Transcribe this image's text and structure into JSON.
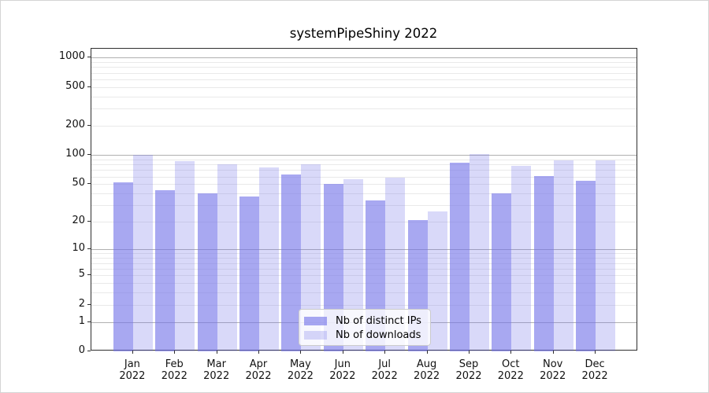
{
  "chart_data": {
    "type": "bar",
    "title": "systemPipeShiny 2022",
    "categories": [
      "Jan 2022",
      "Feb 2022",
      "Mar 2022",
      "Apr 2022",
      "May 2022",
      "Jun 2022",
      "Jul 2022",
      "Aug 2022",
      "Sep 2022",
      "Oct 2022",
      "Nov 2022",
      "Dec 2022"
    ],
    "months": [
      "Jan",
      "Feb",
      "Mar",
      "Apr",
      "May",
      "Jun",
      "Jul",
      "Aug",
      "Sep",
      "Oct",
      "Nov",
      "Dec"
    ],
    "year": "2022",
    "series": [
      {
        "name": "Nb of distinct IPs",
        "color": "rgba(115,115,232,0.62)",
        "values": [
          52,
          43,
          40,
          37,
          63,
          50,
          34,
          21,
          83,
          40,
          61,
          54
        ]
      },
      {
        "name": "Nb of downloads",
        "color": "rgba(115,115,232,0.27)",
        "values": [
          100,
          86,
          80,
          74,
          80,
          56,
          58,
          26,
          102,
          78,
          88,
          88
        ]
      }
    ],
    "yscale": "log1p",
    "ylim": [
      0,
      1000
    ],
    "xlabel": "",
    "ylabel": "",
    "grid": true,
    "y_tick_labels": [
      0,
      1,
      2,
      5,
      10,
      20,
      50,
      100,
      200,
      500,
      1000
    ],
    "y_major_gridlines": [
      1,
      10,
      100,
      1000
    ],
    "y_minor_gridlines": [
      2,
      3,
      4,
      5,
      6,
      7,
      8,
      9,
      20,
      30,
      40,
      50,
      60,
      70,
      80,
      90,
      200,
      300,
      400,
      500,
      600,
      700,
      800,
      900
    ],
    "legend_position": "lower center"
  },
  "colors": {
    "axis": "#2e2e2e",
    "grid_major": "#b0b0b0",
    "grid_minor": "#e9e9e9",
    "text": "#111111",
    "legend_border": "#cccccc",
    "legend_background": "rgba(255,255,255,0.8)"
  }
}
